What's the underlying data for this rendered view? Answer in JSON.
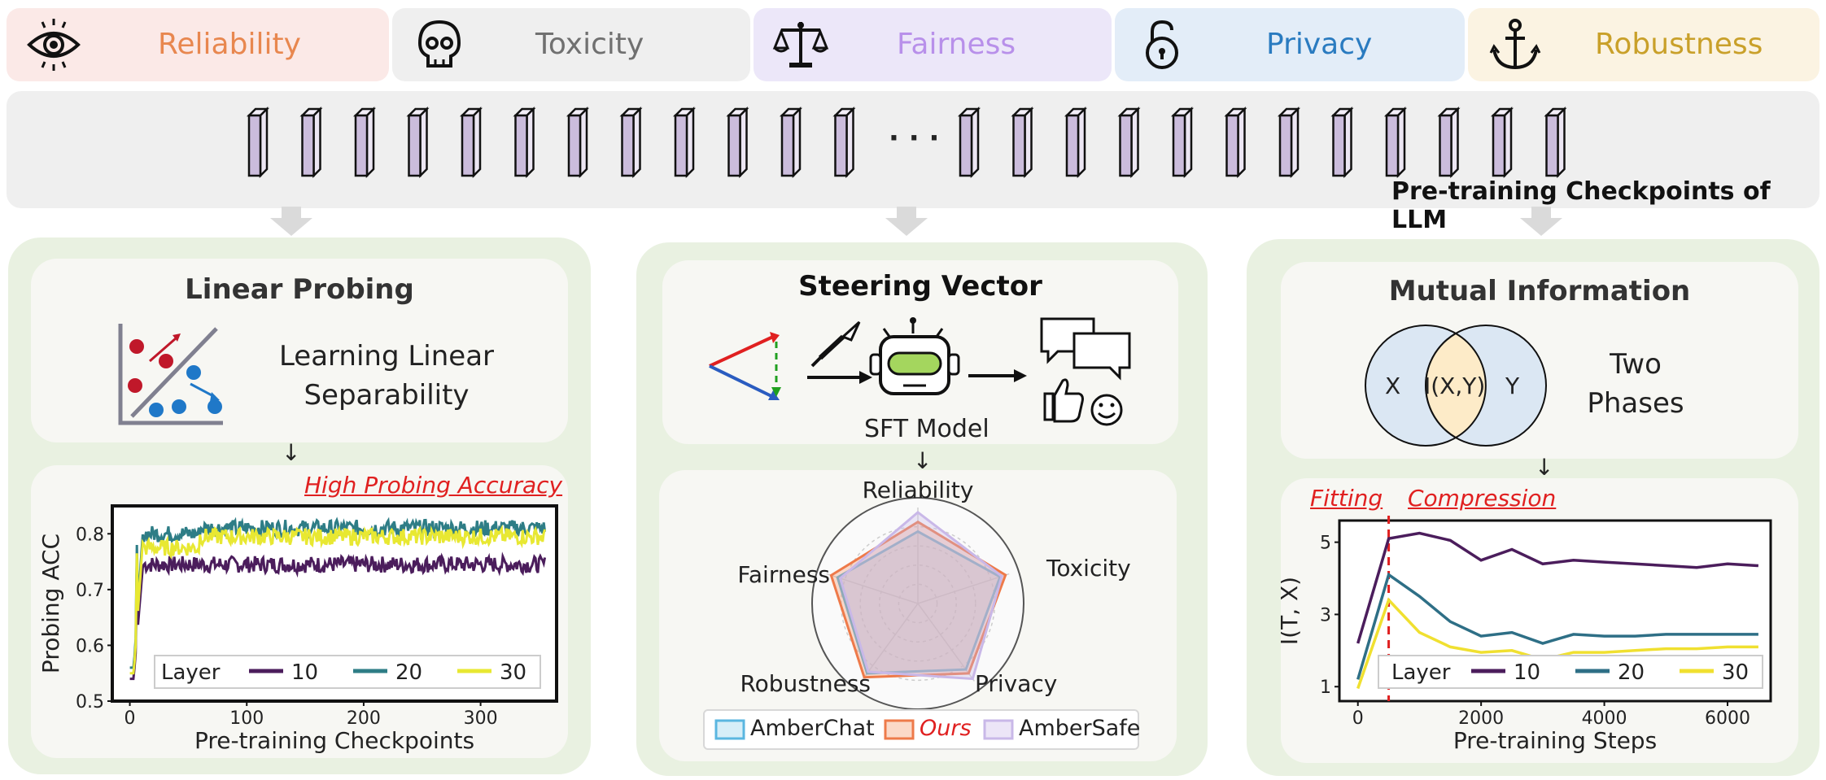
{
  "categories": [
    {
      "label": "Reliability",
      "icon": "eye-icon",
      "bg": "#fbe9e7",
      "color": "#e8874f"
    },
    {
      "label": "Toxicity",
      "icon": "skull-icon",
      "bg": "#efefef",
      "color": "#707070"
    },
    {
      "label": "Fairness",
      "icon": "scales-icon",
      "bg": "#ece7f9",
      "color": "#b890ea"
    },
    {
      "label": "Privacy",
      "icon": "lock-icon",
      "bg": "#e3edf8",
      "color": "#2a7bc0"
    },
    {
      "label": "Robustness",
      "icon": "anchor-icon",
      "bg": "#fbf3e2",
      "color": "#c9a02a"
    }
  ],
  "checkpoints": {
    "ellipsis": "· · ·",
    "caption": "Pre-training Checkpoints of LLM"
  },
  "linear_probing": {
    "title": "Linear Probing",
    "description_line1": "Learning Linear",
    "description_line2": "Separability",
    "annotation": "High Probing Accuracy"
  },
  "steering": {
    "title": "Steering Vector",
    "model_label": "SFT Model",
    "legend": [
      "AmberChat",
      "Ours",
      "AmberSafe"
    ]
  },
  "mutual_info": {
    "title": "Mutual Information",
    "venn_x": "X",
    "venn_xy": "I(X,Y)",
    "venn_y": "Y",
    "description_line1": "Two",
    "description_line2": "Phases",
    "fitting": "Fitting",
    "compression": "Compression"
  },
  "chart_data": [
    {
      "type": "line",
      "xlabel": "Pre-training Checkpoints",
      "ylabel": "Probing ACC",
      "xlim": [
        -15,
        365
      ],
      "ylim": [
        0.5,
        0.85
      ],
      "xticks": [
        0,
        100,
        200,
        300
      ],
      "yticks": [
        0.5,
        0.6,
        0.7,
        0.8
      ],
      "legend_title": "Layer",
      "series": [
        {
          "name": "10",
          "color": "#4b1d5c",
          "start": 0.54,
          "plateau": 0.745
        },
        {
          "name": "20",
          "color": "#2e7d86",
          "start": 0.56,
          "plateau": 0.81
        },
        {
          "name": "30",
          "color": "#e8e832",
          "start": 0.55,
          "plateau": 0.795
        }
      ]
    },
    {
      "type": "radar",
      "axes": [
        "Reliability",
        "Toxicity",
        "Privacy",
        "Robustness",
        "Fairness"
      ],
      "series": [
        {
          "name": "AmberChat",
          "color": "#5ab6e0",
          "values": [
            0.75,
            0.9,
            0.85,
            0.9,
            0.88
          ]
        },
        {
          "name": "Ours",
          "color": "#ee7a4a",
          "values": [
            0.85,
            0.96,
            0.9,
            0.95,
            0.95
          ]
        },
        {
          "name": "AmberSafe",
          "color": "#c9b8e8",
          "values": [
            0.95,
            0.92,
            0.97,
            0.88,
            0.85
          ]
        }
      ]
    },
    {
      "type": "line",
      "xlabel": "Pre-training Steps",
      "ylabel": "I(T, X)",
      "xlim": [
        -300,
        6700
      ],
      "ylim": [
        0.6,
        5.6
      ],
      "xticks": [
        0,
        2000,
        4000,
        6000
      ],
      "yticks": [
        1,
        3,
        5
      ],
      "legend_title": "Layer",
      "phase_boundary": 500,
      "series": [
        {
          "name": "10",
          "color": "#4b1d5c",
          "x": [
            0,
            500,
            1000,
            1500,
            2000,
            2500,
            3000,
            3500,
            4000,
            4500,
            5000,
            5500,
            6000,
            6500
          ],
          "y": [
            2.2,
            5.1,
            5.25,
            5.05,
            4.5,
            4.8,
            4.4,
            4.5,
            4.45,
            4.4,
            4.35,
            4.3,
            4.4,
            4.35
          ]
        },
        {
          "name": "20",
          "color": "#2e6f86",
          "x": [
            0,
            500,
            1000,
            1500,
            2000,
            2500,
            3000,
            3500,
            4000,
            4500,
            5000,
            5500,
            6000,
            6500
          ],
          "y": [
            1.2,
            4.1,
            3.5,
            2.8,
            2.4,
            2.5,
            2.2,
            2.45,
            2.4,
            2.4,
            2.45,
            2.45,
            2.45,
            2.45
          ]
        },
        {
          "name": "30",
          "color": "#f0e030",
          "x": [
            0,
            500,
            1000,
            1500,
            2000,
            2500,
            3000,
            3500,
            4000,
            4500,
            5000,
            5500,
            6000,
            6500
          ],
          "y": [
            0.95,
            3.4,
            2.5,
            2.1,
            1.95,
            2.0,
            1.75,
            1.95,
            1.95,
            2.0,
            2.05,
            2.05,
            2.1,
            2.1
          ]
        }
      ]
    }
  ]
}
